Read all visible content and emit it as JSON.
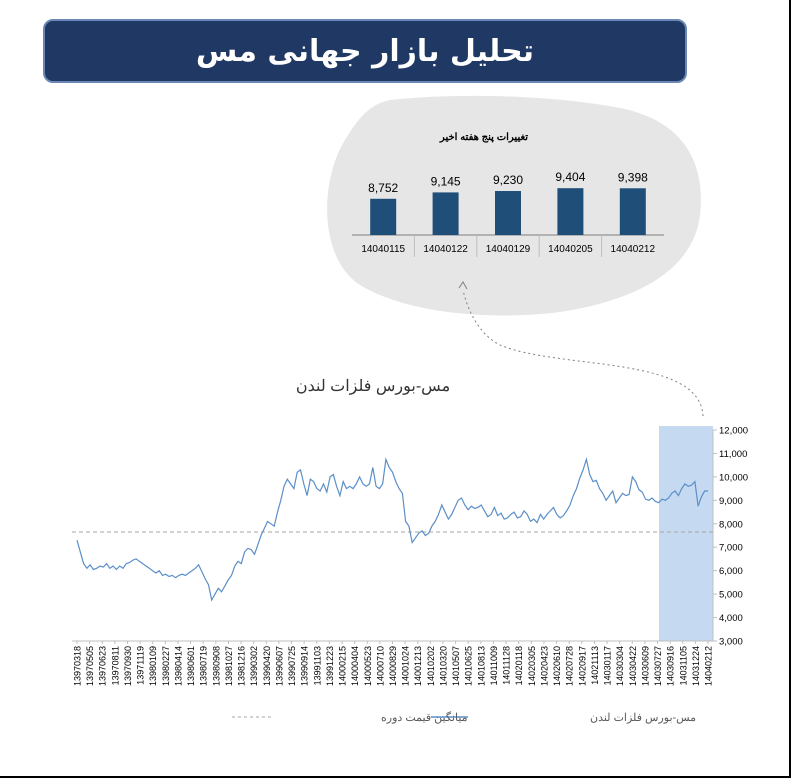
{
  "header": {
    "title": "تحلیل بازار جهانی مس"
  },
  "colors": {
    "banner": "#1f3864",
    "bar": "#1f4e79",
    "line": "#5b8fc7",
    "highlight": "#c5d9f1",
    "blob": "#e7e6e6",
    "avg_line": "#a6a6a6"
  },
  "chart_data": [
    {
      "type": "bar",
      "title": "تغییرات پنج هفته اخیر",
      "categories": [
        "14040115",
        "14040122",
        "14040129",
        "14040205",
        "14040212"
      ],
      "values": [
        8752,
        9145,
        9230,
        9404,
        9398
      ],
      "value_labels": [
        "8,752",
        "9,145",
        "9,230",
        "9,404",
        "9,398"
      ]
    },
    {
      "type": "line",
      "title": "مس-بورس فلزات لندن",
      "ylim": [
        3000,
        12000
      ],
      "y_ticks": [
        "3,000",
        "4,000",
        "5,000",
        "6,000",
        "7,000",
        "8,000",
        "9,000",
        "10,000",
        "11,000",
        "12,000"
      ],
      "x_ticks": [
        "13970318",
        "13970505",
        "13970623",
        "13970811",
        "13970930",
        "13971119",
        "13980109",
        "13980227",
        "13980414",
        "13980601",
        "13980719",
        "13980908",
        "13981027",
        "13981216",
        "13990302",
        "13990420",
        "13990607",
        "13990725",
        "13990914",
        "13991103",
        "13991223",
        "14000215",
        "14000404",
        "14000523",
        "14000710",
        "14000829",
        "14001024",
        "14001213",
        "14010202",
        "14010320",
        "14010507",
        "14010625",
        "14010813",
        "14011009",
        "14011128",
        "14020118",
        "14020305",
        "14020423",
        "14020610",
        "14020728",
        "14020917",
        "14021113",
        "14030117",
        "14030304",
        "14030422",
        "14030609",
        "14030727",
        "14030916",
        "14031105",
        "14031224",
        "14040212"
      ],
      "grid": false,
      "highlight_last_points": 5,
      "series": [
        {
          "name": "مس-بورس فلزات لندن",
          "values": [
            7300,
            6800,
            6300,
            6100,
            6250,
            6050,
            6100,
            6200,
            6150,
            6300,
            6100,
            6200,
            6050,
            6200,
            6100,
            6300,
            6350,
            6450,
            6500,
            6400,
            6300,
            6200,
            6100,
            6000,
            5900,
            6000,
            5800,
            5850,
            5750,
            5800,
            5700,
            5800,
            5850,
            5800,
            5900,
            6000,
            6100,
            6250,
            5950,
            5650,
            5400,
            4750,
            5000,
            5250,
            5100,
            5350,
            5600,
            5800,
            6200,
            6400,
            6300,
            6800,
            6950,
            6900,
            6700,
            7100,
            7500,
            7800,
            8100,
            8000,
            7900,
            8500,
            9000,
            9600,
            9900,
            9700,
            9500,
            10200,
            10300,
            9700,
            9200,
            9900,
            9800,
            9500,
            9400,
            9700,
            9350,
            10000,
            10100,
            9600,
            9200,
            9800,
            9500,
            9600,
            9500,
            9700,
            10000,
            9700,
            9600,
            9700,
            10400,
            9600,
            9500,
            9700,
            10750,
            10400,
            10200,
            9800,
            9500,
            9300,
            8100,
            7900,
            7200,
            7400,
            7600,
            7700,
            7500,
            7600,
            7900,
            8100,
            8400,
            8800,
            8500,
            8200,
            8400,
            8700,
            9000,
            9100,
            8800,
            8600,
            8750,
            8650,
            8700,
            8800,
            8550,
            8300,
            8400,
            8700,
            8350,
            8450,
            8200,
            8250,
            8400,
            8500,
            8250,
            8300,
            8550,
            8400,
            8100,
            8200,
            8050,
            8400,
            8200,
            8400,
            8550,
            8700,
            8400,
            8250,
            8350,
            8550,
            8800,
            9200,
            9500,
            9950,
            10300,
            10750,
            10100,
            9800,
            9850,
            9500,
            9300,
            9000,
            9200,
            9400,
            8900,
            9100,
            9300,
            9200,
            9250,
            10000,
            9800,
            9450,
            9350,
            9050,
            9000,
            9100,
            8950,
            8900,
            9050,
            9000,
            9100,
            9300,
            9400,
            9200,
            9500,
            9700,
            9600,
            9650,
            9800,
            8750,
            9150,
            9400,
            9398
          ]
        },
        {
          "name": "میانگین قیمت دوره",
          "values": [
            7650
          ]
        }
      ]
    }
  ]
}
